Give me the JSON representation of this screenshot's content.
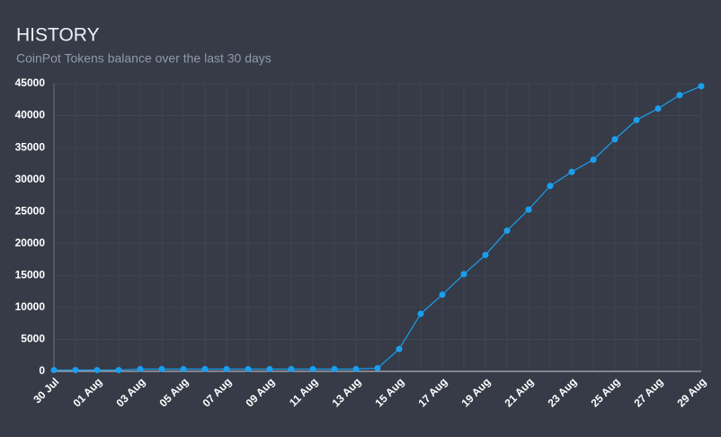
{
  "chart_data": {
    "type": "line",
    "title": "HISTORY",
    "subtitle": "CoinPot Tokens balance over the last 30 days",
    "categories": [
      "30 Jul",
      null,
      "01 Aug",
      null,
      "03 Aug",
      null,
      "05 Aug",
      null,
      "07 Aug",
      null,
      "09 Aug",
      null,
      "11 Aug",
      null,
      "13 Aug",
      null,
      "15 Aug",
      null,
      "17 Aug",
      null,
      "19 Aug",
      null,
      "21 Aug",
      null,
      "23 Aug",
      null,
      "25 Aug",
      null,
      "27 Aug",
      null,
      "29 Aug"
    ],
    "series": [
      {
        "name": "CoinPot Tokens",
        "color": "#1a9ff0",
        "values": [
          200,
          200,
          200,
          200,
          350,
          350,
          350,
          350,
          350,
          350,
          350,
          350,
          350,
          350,
          350,
          500,
          3500,
          9000,
          12000,
          15200,
          18200,
          22000,
          25300,
          29000,
          31200,
          33100,
          36300,
          39300,
          41100,
          43200,
          44600
        ]
      }
    ],
    "ylim": [
      0,
      45000
    ],
    "yticks": [
      0,
      5000,
      10000,
      15000,
      20000,
      25000,
      30000,
      35000,
      40000,
      45000
    ],
    "grid": true
  }
}
